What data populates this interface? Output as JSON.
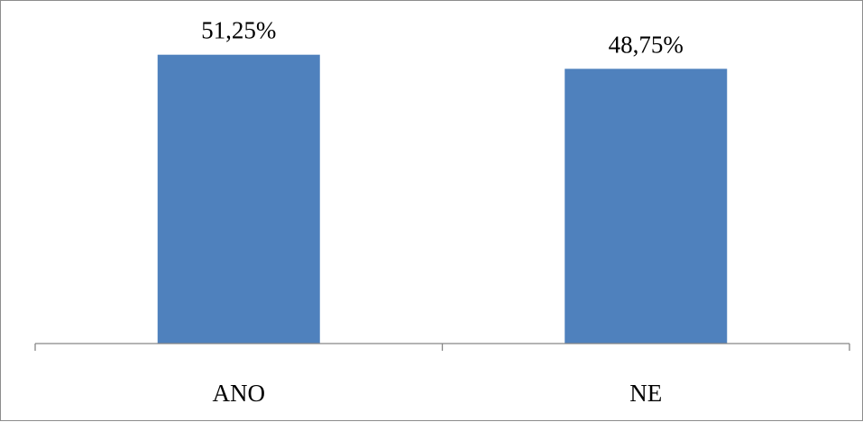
{
  "chart_data": {
    "type": "bar",
    "categories": [
      "ANO",
      "NE"
    ],
    "values": [
      51.25,
      48.75
    ],
    "data_labels": [
      "51,25%",
      "48,75%"
    ],
    "title": "",
    "xlabel": "",
    "ylabel": "",
    "ylim": [
      0,
      56
    ],
    "grid": false,
    "legend": "none",
    "bar_color": "#4f81bd",
    "axis_color": "#868686"
  }
}
